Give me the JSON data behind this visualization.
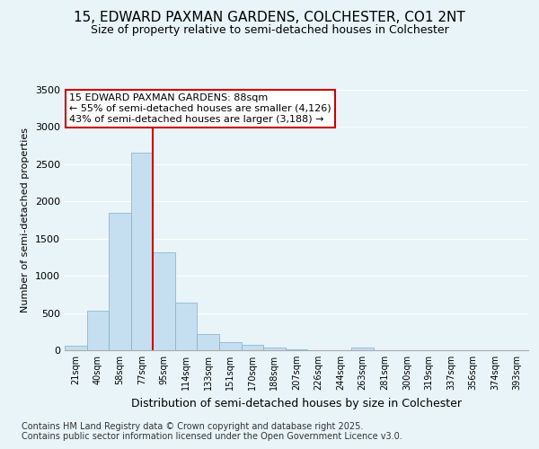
{
  "title": "15, EDWARD PAXMAN GARDENS, COLCHESTER, CO1 2NT",
  "subtitle": "Size of property relative to semi-detached houses in Colchester",
  "xlabel": "Distribution of semi-detached houses by size in Colchester",
  "ylabel": "Number of semi-detached properties",
  "bar_categories": [
    "21sqm",
    "40sqm",
    "58sqm",
    "77sqm",
    "95sqm",
    "114sqm",
    "133sqm",
    "151sqm",
    "170sqm",
    "188sqm",
    "207sqm",
    "226sqm",
    "244sqm",
    "263sqm",
    "281sqm",
    "300sqm",
    "319sqm",
    "337sqm",
    "356sqm",
    "374sqm",
    "393sqm"
  ],
  "bar_values": [
    65,
    530,
    1850,
    2650,
    1320,
    640,
    220,
    110,
    70,
    35,
    10,
    5,
    3,
    40,
    2,
    1,
    1,
    1,
    1,
    1,
    1
  ],
  "bar_color": "#c5dff0",
  "bar_edge_color": "#7bafd4",
  "property_label": "15 EDWARD PAXMAN GARDENS: 88sqm",
  "pct_smaller": 55,
  "pct_smaller_count": 4126,
  "pct_larger": 43,
  "pct_larger_count": 3188,
  "vline_color": "#cc0000",
  "vline_x": 3.5,
  "annotation_box_edge": "#cc0000",
  "ylim": [
    0,
    3500
  ],
  "yticks": [
    0,
    500,
    1000,
    1500,
    2000,
    2500,
    3000,
    3500
  ],
  "background_color": "#e8f4f8",
  "plot_bg_color": "#deeef8",
  "grid_color": "#ffffff",
  "title_fontsize": 11,
  "subtitle_fontsize": 9,
  "footer_line1": "Contains HM Land Registry data © Crown copyright and database right 2025.",
  "footer_line2": "Contains public sector information licensed under the Open Government Licence v3.0."
}
